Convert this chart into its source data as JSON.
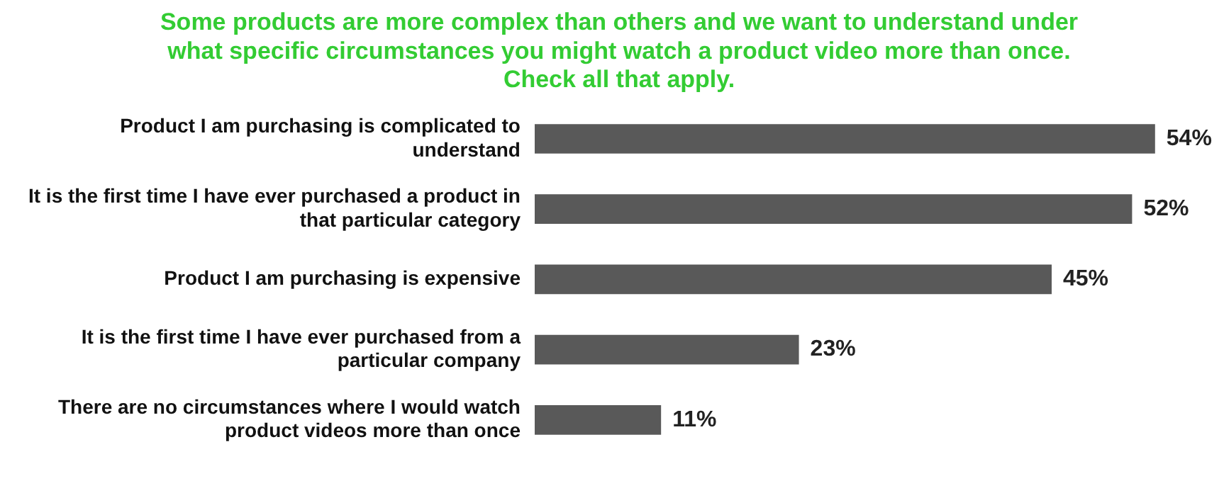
{
  "chart_data": {
    "type": "bar",
    "orientation": "horizontal",
    "title": "Some products are more complex than others and we want to understand under\nwhat specific circumstances you might watch a product video more than once.\nCheck all that apply.",
    "categories": [
      "Product I am purchasing is complicated to\nunderstand",
      "It is the first time I have ever purchased a product in\nthat particular category",
      "Product I am purchasing is expensive",
      "It is the first time I have ever purchased from a\nparticular company",
      "There are no circumstances where I would watch\nproduct videos more than once"
    ],
    "values": [
      54,
      52,
      45,
      23,
      11
    ],
    "value_labels": [
      "54%",
      "52%",
      "45%",
      "23%",
      "11%"
    ],
    "color": "#595959",
    "tick_labels": "y",
    "legend": false
  }
}
